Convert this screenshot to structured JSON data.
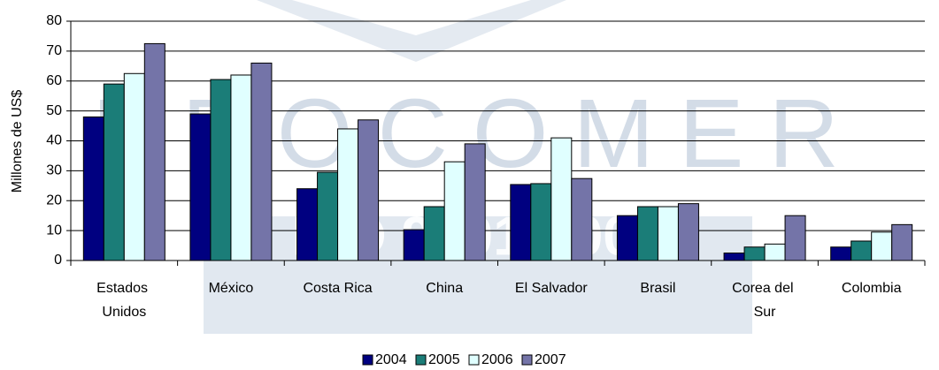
{
  "chart_data": {
    "type": "bar",
    "y_label": "Millones de US$",
    "watermark": [
      "PROCOMER",
      "ISO 9001-2000"
    ],
    "categories": [
      "Estados Unidos",
      "México",
      "Costa Rica",
      "China",
      "El Salvador",
      "Brasil",
      "Corea del Sur",
      "Colombia"
    ],
    "series": [
      {
        "name": "2004",
        "color": "#000080",
        "values": [
          48,
          49,
          24,
          10.3,
          25.4,
          15,
          2.5,
          4.5
        ]
      },
      {
        "name": "2005",
        "color": "#1b7d78",
        "values": [
          59,
          60.5,
          29.5,
          18,
          25.7,
          18,
          4.5,
          6.5
        ]
      },
      {
        "name": "2006",
        "color": "#e0ffff",
        "values": [
          62.5,
          62,
          44,
          33,
          41,
          18,
          5.5,
          9.5
        ]
      },
      {
        "name": "2007",
        "color": "#7474a8",
        "values": [
          72.5,
          66,
          47,
          39,
          27.4,
          19,
          15,
          12
        ]
      }
    ],
    "ylim": [
      0,
      80
    ],
    "yticks": [
      0,
      10,
      20,
      30,
      40,
      50,
      60,
      70,
      80
    ],
    "grid": true,
    "legend": "bottom"
  }
}
